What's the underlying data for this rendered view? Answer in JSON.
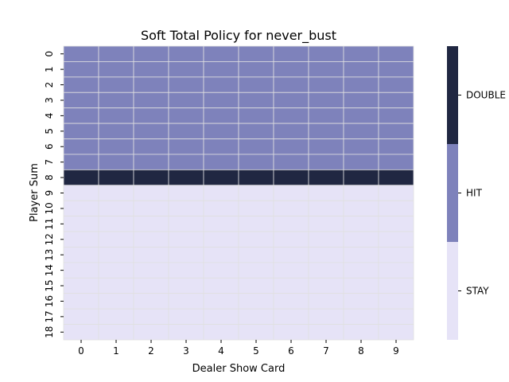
{
  "chart_data": {
    "type": "heatmap",
    "title": "Soft Total Policy for never_bust",
    "xlabel": "Dealer Show Card",
    "ylabel": "Player Sum",
    "x_categories": [
      "0",
      "1",
      "2",
      "3",
      "4",
      "5",
      "6",
      "7",
      "8",
      "9"
    ],
    "y_categories": [
      "0",
      "1",
      "2",
      "3",
      "4",
      "5",
      "6",
      "7",
      "8",
      "9",
      "10",
      "11",
      "12",
      "13",
      "14",
      "15",
      "16",
      "17",
      "18"
    ],
    "row_actions": [
      "HIT",
      "HIT",
      "HIT",
      "HIT",
      "HIT",
      "HIT",
      "HIT",
      "HIT",
      "DOUBLE",
      "STAY",
      "STAY",
      "STAY",
      "STAY",
      "STAY",
      "STAY",
      "STAY",
      "STAY",
      "STAY",
      "STAY"
    ],
    "legend": {
      "placement": "right",
      "entries": [
        {
          "label": "STAY",
          "color": "#e6e3f7"
        },
        {
          "label": "HIT",
          "color": "#7e82bb"
        },
        {
          "label": "DOUBLE",
          "color": "#202742"
        }
      ]
    },
    "cell_border_color": "#e0e0e0"
  }
}
